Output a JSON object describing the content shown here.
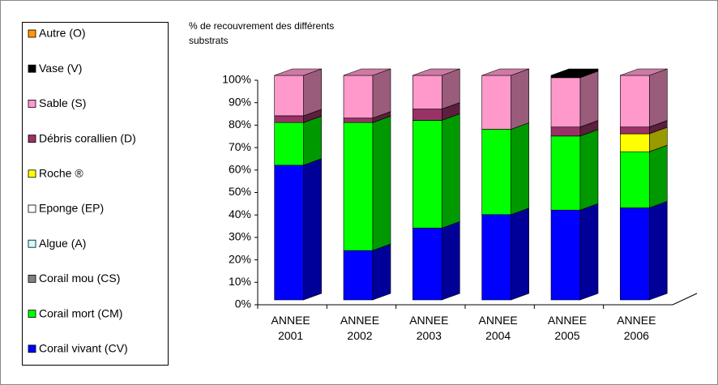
{
  "chart_data": {
    "type": "stacked_bar_3d",
    "title": "% de recouvrement des différents substrats",
    "categories": [
      "ANNEE 2001",
      "ANNEE 2002",
      "ANNEE 2003",
      "ANNEE 2004",
      "ANNEE 2005",
      "ANNEE 2006"
    ],
    "series": [
      {
        "name": "Corail vivant (CV)",
        "color": "#0000ff",
        "values": [
          60,
          22,
          32,
          38,
          40,
          41
        ]
      },
      {
        "name": "Corail mort (CM)",
        "color": "#00ff00",
        "values": [
          19,
          57,
          48,
          38,
          33,
          25
        ]
      },
      {
        "name": "Corail mou (CS)",
        "color": "#808080",
        "values": [
          0,
          0,
          0,
          0,
          0,
          0
        ]
      },
      {
        "name": "Algue (A)",
        "color": "#ccffff",
        "values": [
          0,
          0,
          0,
          0,
          0,
          0
        ]
      },
      {
        "name": "Eponge (EP)",
        "color": "#ffffff",
        "values": [
          0,
          0,
          0,
          0,
          0,
          0
        ]
      },
      {
        "name": "Roche ®",
        "color": "#ffff00",
        "values": [
          0,
          0,
          0,
          0,
          0,
          8
        ]
      },
      {
        "name": "Débris corallien (D)",
        "color": "#993366",
        "values": [
          3,
          2,
          5,
          0,
          4,
          3
        ]
      },
      {
        "name": "Sable (S)",
        "color": "#ff99cc",
        "values": [
          18,
          19,
          15,
          24,
          22,
          23
        ]
      },
      {
        "name": "Vase (V)",
        "color": "#000000",
        "values": [
          0,
          0,
          0,
          0,
          1,
          0
        ]
      },
      {
        "name": "Autre (O)",
        "color": "#ff9900",
        "values": [
          0,
          0,
          0,
          0,
          0,
          0
        ]
      }
    ],
    "ylim": [
      0,
      100
    ],
    "yticks": [
      {
        "value": 0,
        "label": "0%"
      },
      {
        "value": 10,
        "label": "10%"
      },
      {
        "value": 20,
        "label": "20%"
      },
      {
        "value": 30,
        "label": "30%"
      },
      {
        "value": 40,
        "label": "40%"
      },
      {
        "value": 50,
        "label": "50%"
      },
      {
        "value": 60,
        "label": "60%"
      },
      {
        "value": 70,
        "label": "70%"
      },
      {
        "value": 80,
        "label": "80%"
      },
      {
        "value": 90,
        "label": "90%"
      },
      {
        "value": 100,
        "label": "100%"
      }
    ],
    "legend": "left"
  }
}
